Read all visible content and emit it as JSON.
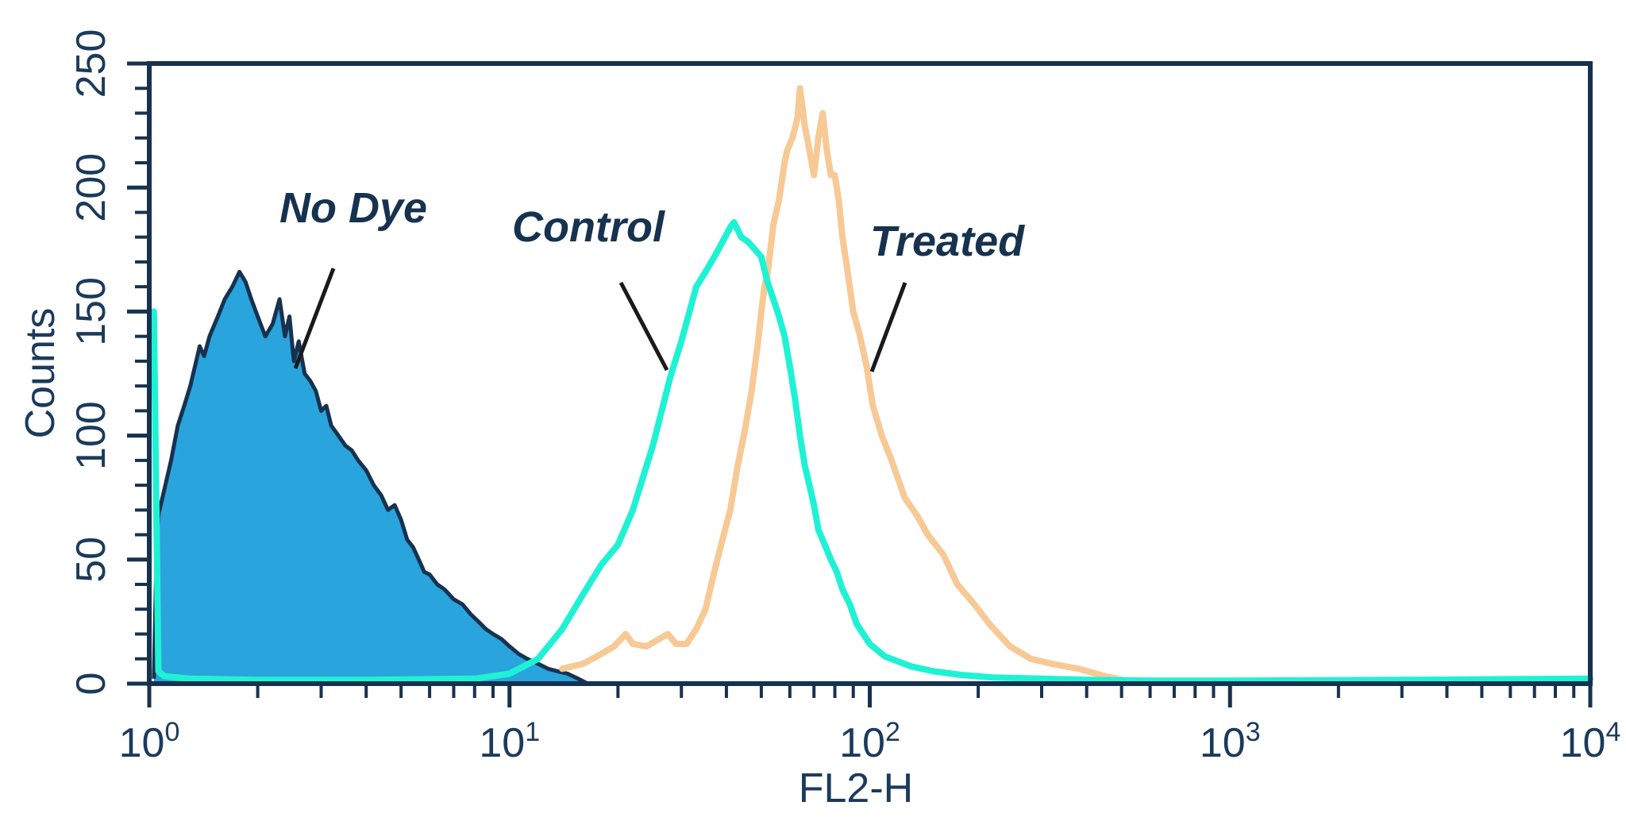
{
  "chart_data": {
    "type": "area",
    "title": "",
    "xlabel": "FL2-H",
    "ylabel": "Counts",
    "xscale": "log",
    "xlim": [
      1,
      10000
    ],
    "ylim": [
      0,
      250
    ],
    "grid": false,
    "x_tick_labels": [
      {
        "base": "10",
        "exp": "0"
      },
      {
        "base": "10",
        "exp": "1"
      },
      {
        "base": "10",
        "exp": "2"
      },
      {
        "base": "10",
        "exp": "3"
      },
      {
        "base": "10",
        "exp": "4"
      }
    ],
    "y_tick_labels": [
      "0",
      "50",
      "100",
      "150",
      "200",
      "250"
    ],
    "annotations": [
      "No Dye",
      "Control",
      "Treated"
    ],
    "colors": {
      "axis": "#16324f",
      "no_dye_fill": "#2aa4dc",
      "no_dye_line": "#16324f",
      "control": "#1ff2d4",
      "treated": "#f7c995",
      "pointer": "#1a1a1a"
    },
    "series": [
      {
        "x": [
          1.03,
          1.05,
          1.06,
          1.1,
          1.15,
          1.2,
          1.25,
          1.3,
          1.35,
          1.38,
          1.42,
          1.47,
          1.55,
          1.62,
          1.7,
          1.78,
          1.85,
          1.92,
          2.0,
          2.1,
          2.2,
          2.3,
          2.38,
          2.45,
          2.52,
          2.6,
          2.7,
          2.8,
          2.9,
          3.0,
          3.1,
          3.2,
          3.35,
          3.5,
          3.65,
          3.8,
          4.0,
          4.2,
          4.4,
          4.6,
          4.8,
          5.0,
          5.2,
          5.4,
          5.6,
          5.8,
          6.0,
          6.3,
          6.6,
          7.0,
          7.4,
          7.8,
          8.2,
          8.6,
          9.0,
          9.5,
          10.0,
          10.6,
          11.2,
          12.0,
          12.8,
          13.6,
          14.5,
          15.5,
          16.5
        ],
        "values": [
          2,
          60,
          68,
          78,
          90,
          104,
          112,
          120,
          130,
          136,
          132,
          140,
          148,
          155,
          160,
          166,
          162,
          155,
          148,
          140,
          145,
          155,
          140,
          148,
          130,
          138,
          125,
          122,
          118,
          110,
          112,
          104,
          100,
          96,
          94,
          90,
          86,
          80,
          76,
          70,
          72,
          66,
          58,
          55,
          50,
          45,
          44,
          40,
          38,
          34,
          32,
          28,
          25,
          22,
          20,
          18,
          15,
          12,
          10,
          8,
          6,
          5,
          4,
          2,
          0
        ]
      },
      {
        "x": [
          1.03,
          1.06,
          1.1,
          1.3,
          2,
          4,
          8,
          10,
          12,
          14,
          16,
          18,
          20,
          22,
          25,
          28,
          30,
          33,
          35,
          37,
          39,
          41,
          42,
          44,
          46,
          48,
          50,
          52,
          54,
          56,
          58,
          60,
          62,
          64,
          66,
          68,
          70,
          72,
          75,
          78,
          81,
          84,
          88,
          92,
          100,
          110,
          130,
          150,
          180,
          220,
          300,
          400,
          600,
          1000,
          3000,
          10000
        ],
        "values": [
          150,
          5,
          3,
          2,
          1.5,
          1.5,
          2,
          4,
          10,
          22,
          36,
          48,
          56,
          70,
          96,
          124,
          138,
          160,
          166,
          172,
          178,
          184,
          186,
          180,
          178,
          175,
          172,
          162,
          155,
          148,
          140,
          128,
          115,
          100,
          88,
          80,
          72,
          62,
          56,
          50,
          45,
          38,
          32,
          24,
          16,
          11,
          7,
          5,
          3.5,
          2.5,
          2,
          1.5,
          1.2,
          1.2,
          1.5,
          2
        ]
      },
      {
        "x": [
          14,
          16,
          18,
          19.5,
          21,
          22,
          24,
          26,
          27.5,
          29,
          31,
          33,
          35,
          37,
          39,
          41,
          43,
          45,
          47,
          49,
          50,
          51,
          52,
          54,
          56,
          58,
          59,
          61,
          63,
          64,
          66,
          68,
          70,
          72,
          74,
          76,
          78,
          80,
          82,
          84,
          86,
          88,
          90,
          94,
          98,
          102,
          108,
          115,
          125,
          135,
          145,
          160,
          175,
          195,
          215,
          245,
          280,
          320,
          380,
          450,
          520
        ],
        "values": [
          6,
          8,
          12,
          15,
          20,
          16,
          15,
          18,
          20,
          16,
          16,
          22,
          30,
          45,
          58,
          70,
          88,
          102,
          118,
          138,
          150,
          160,
          165,
          185,
          195,
          210,
          215,
          220,
          228,
          240,
          225,
          215,
          205,
          220,
          230,
          215,
          205,
          205,
          195,
          180,
          170,
          160,
          150,
          140,
          128,
          112,
          100,
          90,
          75,
          68,
          60,
          52,
          40,
          32,
          24,
          15,
          10,
          8,
          6,
          3,
          1
        ]
      }
    ]
  }
}
